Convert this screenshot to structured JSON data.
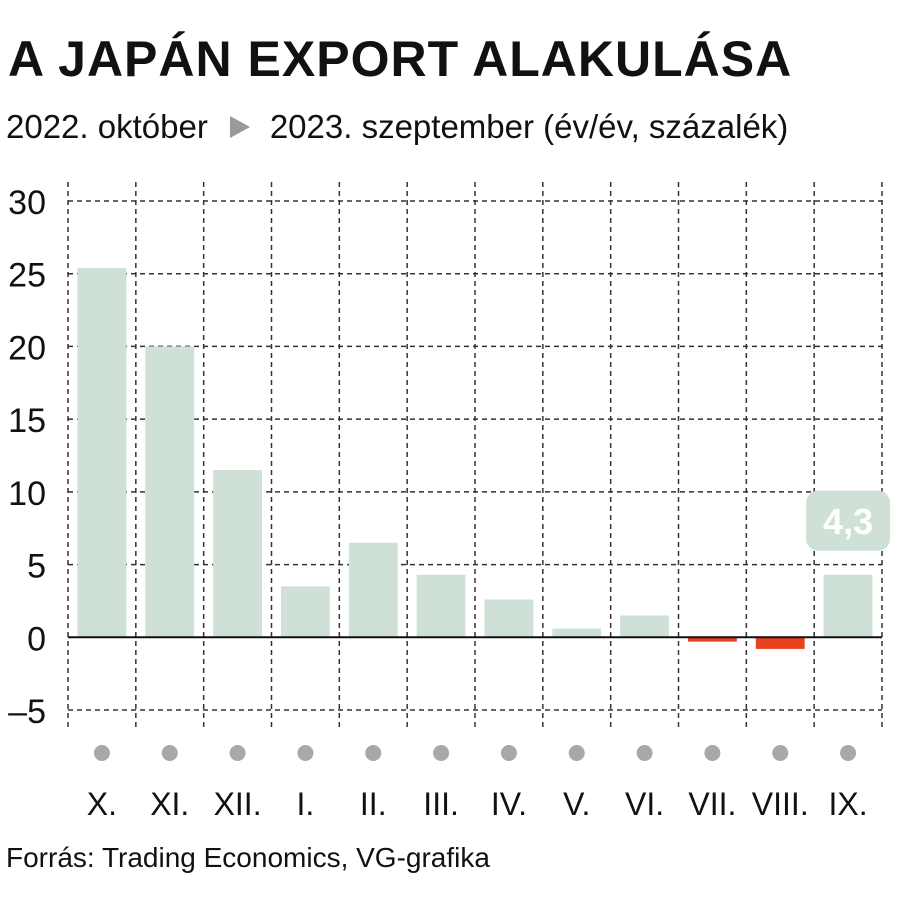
{
  "header": {
    "title": "A JAPÁN EXPORT ALAKULÁSA",
    "subtitle_start": "2022. október",
    "subtitle_end": "2023. szeptember (év/év, százalék)"
  },
  "footer": {
    "source": "Forrás: Trading Economics, VG-grafika"
  },
  "colors": {
    "positive_bar": "#cfe0d6",
    "negative_bar": "#e8421f",
    "highlight_label_bg": "#cfe0d6",
    "highlight_label_text": "#ffffff",
    "marker_dot": "#a8a8a8",
    "grid": "#333333"
  },
  "chart_data": {
    "type": "bar",
    "categories": [
      "X.",
      "XI.",
      "XII.",
      "I.",
      "II.",
      "III.",
      "IV.",
      "V.",
      "VI.",
      "VII.",
      "VIII.",
      "IX."
    ],
    "values": [
      25.4,
      20.0,
      11.5,
      3.5,
      6.5,
      4.3,
      2.6,
      0.6,
      1.5,
      -0.3,
      -0.8,
      4.3
    ],
    "ylim": [
      -5,
      30
    ],
    "yticks": [
      30,
      25,
      20,
      15,
      10,
      5,
      0,
      -5
    ],
    "ytick_labels": [
      "30",
      "25",
      "20",
      "15",
      "10",
      "5",
      "0",
      "–5"
    ],
    "highlight": {
      "category": "IX.",
      "label": "4,3"
    },
    "grid": true
  }
}
